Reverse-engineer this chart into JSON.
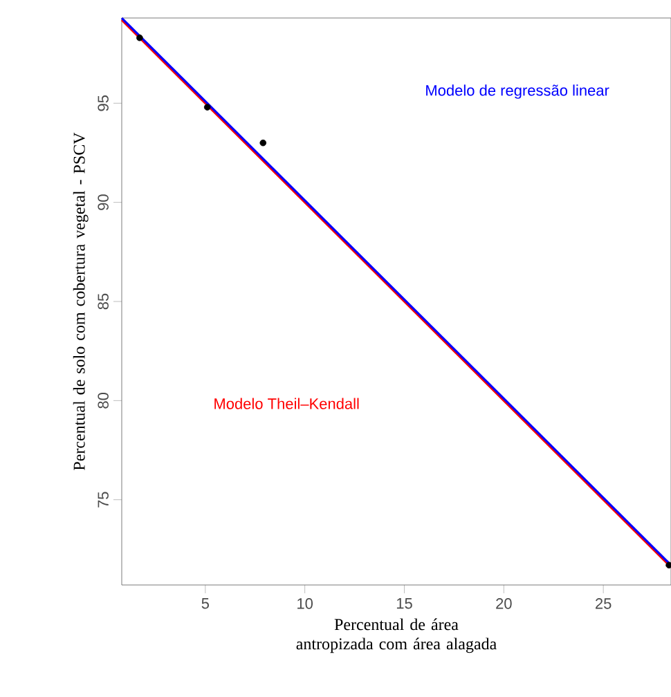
{
  "chart_data": {
    "type": "scatter",
    "xlabel": "Percentual de área antropizada com  área alagada",
    "ylabel": "Percentual de solo com cobertura vegetal - PSCV",
    "xlim": [
      0.8,
      28.4
    ],
    "ylim": [
      70.7,
      99.3
    ],
    "xticks": [
      5,
      10,
      15,
      20,
      25
    ],
    "yticks": [
      75,
      80,
      85,
      90,
      95
    ],
    "grid": false,
    "series": [
      {
        "color": "#000000",
        "marker": "circle",
        "x": [
          1.7,
          5.1,
          7.9,
          28.3
        ],
        "values": [
          98.3,
          94.8,
          93.0,
          71.7
        ]
      },
      {
        "type": "line",
        "name": "Modelo Theil–Kendall",
        "color": "#ff0000",
        "x": [
          0.8,
          28.4
        ],
        "values": [
          99.2,
          71.6
        ]
      },
      {
        "type": "line",
        "name": "Modelo de regressão linear",
        "color": "#0000ff",
        "x": [
          0.8,
          28.4
        ],
        "values": [
          99.3,
          71.7
        ]
      }
    ]
  }
}
